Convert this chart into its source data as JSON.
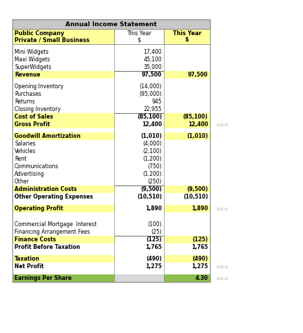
{
  "title": "Annual Income Statement",
  "rows": [
    {
      "label": "",
      "col2": "",
      "col3": "",
      "type": "spacer"
    },
    {
      "label": "Mini Widgets",
      "col2": "17,400",
      "col3": "",
      "type": "normal"
    },
    {
      "label": "Maxi Widgets",
      "col2": "45,100",
      "col3": "",
      "type": "normal"
    },
    {
      "label": "SuperWidgets",
      "col2": "35,000",
      "col3": "",
      "type": "normal_underline"
    },
    {
      "label": "Revenue",
      "col2": "97,500",
      "col3": "97,500",
      "type": "bold_yellow"
    },
    {
      "label": "",
      "col2": "",
      "col3": "",
      "type": "spacer"
    },
    {
      "label": "Opening Inventory",
      "col2": "(14,000)",
      "col3": "",
      "type": "normal"
    },
    {
      "label": "Purchases",
      "col2": "(95,000)",
      "col3": "",
      "type": "normal"
    },
    {
      "label": "Returns",
      "col2": "945",
      "col3": "",
      "type": "normal"
    },
    {
      "label": "Closing Inventory",
      "col2": "22,955",
      "col3": "",
      "type": "normal_underline"
    },
    {
      "label": "Cost of Sales",
      "col2": "(85,100)",
      "col3": "(85,100)",
      "type": "bold_yellow"
    },
    {
      "label": "Gross Profit",
      "col2": "12,400",
      "col3": "12,400",
      "type": "bold_yellow",
      "arrow": true
    },
    {
      "label": "",
      "col2": "",
      "col3": "",
      "type": "spacer"
    },
    {
      "label": "Goodwill Amortization",
      "col2": "(1,010)",
      "col3": "(1,010)",
      "type": "bold_yellow"
    },
    {
      "label": "Salaries",
      "col2": "(4,000)",
      "col3": "",
      "type": "normal"
    },
    {
      "label": "Vehicles",
      "col2": "(2,100)",
      "col3": "",
      "type": "normal"
    },
    {
      "label": "Rent",
      "col2": "(1,200)",
      "col3": "",
      "type": "normal"
    },
    {
      "label": "Communications",
      "col2": "(750)",
      "col3": "",
      "type": "normal"
    },
    {
      "label": "Advertising",
      "col2": "(1,200)",
      "col3": "",
      "type": "normal"
    },
    {
      "label": "Other",
      "col2": "(250)",
      "col3": "",
      "type": "normal_underline"
    },
    {
      "label": "Administration Costs",
      "col2": "(9,500)",
      "col3": "(9,500)",
      "type": "bold_yellow"
    },
    {
      "label": "Other Operating Expenses",
      "col2": "(10,510)",
      "col3": "(10,510)",
      "type": "bold_normal"
    },
    {
      "label": "",
      "col2": "",
      "col3": "",
      "type": "spacer"
    },
    {
      "label": "Operating Profit",
      "col2": "1,890",
      "col3": "1,890",
      "type": "bold_yellow",
      "arrow": true
    },
    {
      "label": "",
      "col2": "",
      "col3": "",
      "type": "spacer"
    },
    {
      "label": "",
      "col2": "",
      "col3": "",
      "type": "spacer"
    },
    {
      "label": "Commercial Mortgage  Interest",
      "col2": "(100)",
      "col3": "",
      "type": "normal"
    },
    {
      "label": "Financing Arrangement Fees",
      "col2": "(25)",
      "col3": "",
      "type": "normal_underline"
    },
    {
      "label": "Finance Costs",
      "col2": "(125)",
      "col3": "(125)",
      "type": "bold_yellow"
    },
    {
      "label": "Profit Before Taxation",
      "col2": "1,765",
      "col3": "1,765",
      "type": "bold_normal"
    },
    {
      "label": "",
      "col2": "",
      "col3": "",
      "type": "spacer"
    },
    {
      "label": "Taxation",
      "col2": "(490)",
      "col3": "(490)",
      "type": "bold_yellow"
    },
    {
      "label": "Net Profit",
      "col2": "1,275",
      "col3": "1,275",
      "type": "bold_normal",
      "arrow": true
    },
    {
      "label": "",
      "col2": "",
      "col3": "",
      "type": "spacer"
    },
    {
      "label": "Earnings Per Share",
      "col2": "",
      "col3": "4.30",
      "type": "eps",
      "arrow": true
    }
  ],
  "colors": {
    "header_bg": "#c8c8c8",
    "yellow_bg": "#ffff99",
    "green_bg": "#8fbc4f",
    "gray_mid": "#d8d8d8",
    "white_bg": "#ffffff",
    "border": "#888888",
    "arrow_text": "#aaaaaa"
  },
  "fig_width": 4.4,
  "fig_height": 4.83
}
